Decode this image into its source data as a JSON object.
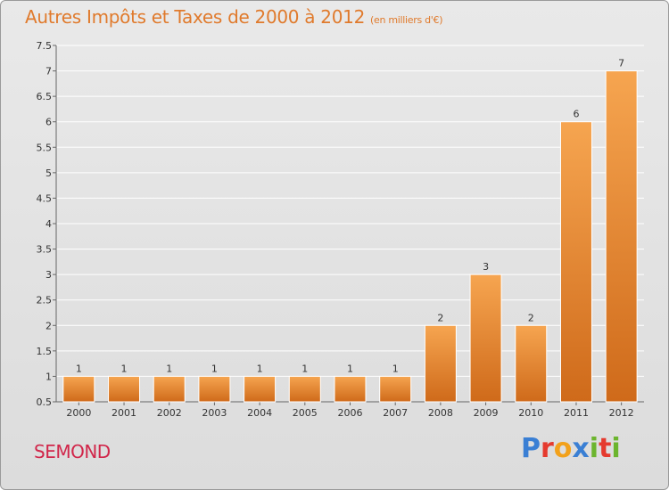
{
  "title": "Autres Impôts et Taxes de 2000 à 2012",
  "subtitle": "(en milliers d'€)",
  "commune": "SEMOND",
  "logo": {
    "letters": [
      "P",
      "r",
      "o",
      "x",
      "i",
      "t",
      "i"
    ],
    "colors": [
      "#3a7fd4",
      "#e53a2e",
      "#f2a11b",
      "#3a7fd4",
      "#6cb52e",
      "#e53a2e",
      "#6cb52e"
    ]
  },
  "colors": {
    "title": "#e07a2c",
    "commune": "#d1264a",
    "bar_top": "#f6a550",
    "bar_bottom": "#cf6a1a"
  },
  "chart_data": {
    "type": "bar",
    "title": "Autres Impôts et Taxes de 2000 à 2012",
    "subtitle": "(en milliers d'€)",
    "xlabel": "",
    "ylabel": "",
    "ylim": [
      0.5,
      7.5
    ],
    "yticks": [
      "0.5",
      "1",
      "1.5",
      "2",
      "2.5",
      "3",
      "3.5",
      "4",
      "4.5",
      "5",
      "5.5",
      "6",
      "6.5",
      "7",
      "7.5"
    ],
    "grid": true,
    "categories": [
      "2000",
      "2001",
      "2002",
      "2003",
      "2004",
      "2005",
      "2006",
      "2007",
      "2008",
      "2009",
      "2010",
      "2011",
      "2012"
    ],
    "values": [
      1,
      1,
      1,
      1,
      1,
      1,
      1,
      1,
      2,
      3,
      2,
      6,
      7
    ]
  }
}
